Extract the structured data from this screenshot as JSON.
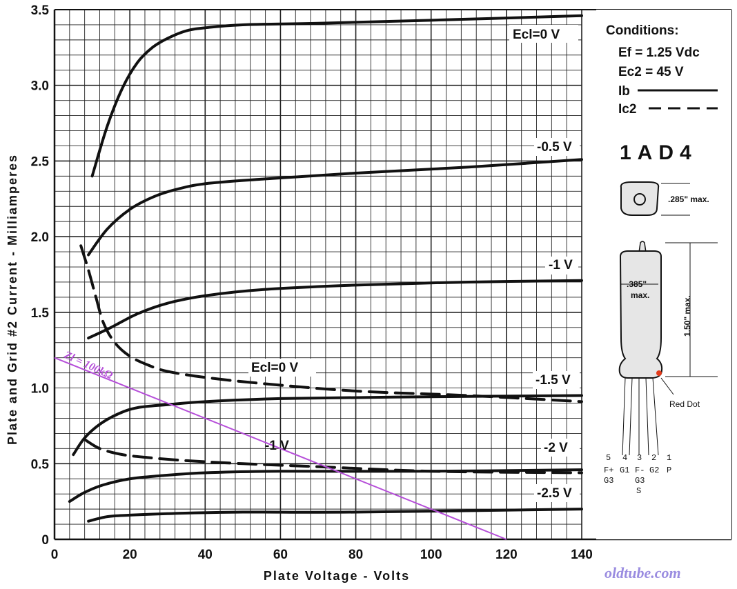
{
  "chart_data": {
    "type": "line",
    "title": "",
    "xlabel": "Plate Voltage - Volts",
    "ylabel": "Plate and Grid #2 Current - Milliamperes",
    "xlim": [
      0,
      140
    ],
    "ylim": [
      0,
      3.5
    ],
    "x_ticks": [
      "0",
      "20",
      "40",
      "60",
      "80",
      "100",
      "120",
      "140"
    ],
    "y_ticks": [
      "0",
      "0.5",
      "1.0",
      "1.5",
      "2.0",
      "2.5",
      "3.0",
      "3.5"
    ],
    "grid": true,
    "series": [
      {
        "name": "Ecl=0 V",
        "label": "Ecl=0 V",
        "kind": "Ib",
        "points": [
          [
            10,
            2.4
          ],
          [
            14,
            2.73
          ],
          [
            18,
            2.98
          ],
          [
            22,
            3.15
          ],
          [
            26,
            3.25
          ],
          [
            30,
            3.31
          ],
          [
            35,
            3.36
          ],
          [
            40,
            3.38
          ],
          [
            50,
            3.4
          ],
          [
            70,
            3.41
          ],
          [
            100,
            3.43
          ],
          [
            140,
            3.46
          ]
        ]
      },
      {
        "name": "-0.5 V",
        "label": "-0.5 V",
        "kind": "Ib",
        "points": [
          [
            9,
            1.88
          ],
          [
            14,
            2.05
          ],
          [
            20,
            2.18
          ],
          [
            26,
            2.26
          ],
          [
            32,
            2.31
          ],
          [
            40,
            2.35
          ],
          [
            55,
            2.38
          ],
          [
            80,
            2.42
          ],
          [
            110,
            2.46
          ],
          [
            140,
            2.51
          ]
        ]
      },
      {
        "name": "-1 V",
        "label": "-1 V",
        "kind": "Ib",
        "points": [
          [
            9,
            1.33
          ],
          [
            15,
            1.4
          ],
          [
            22,
            1.49
          ],
          [
            30,
            1.56
          ],
          [
            40,
            1.61
          ],
          [
            55,
            1.65
          ],
          [
            80,
            1.68
          ],
          [
            110,
            1.7
          ],
          [
            140,
            1.71
          ]
        ]
      },
      {
        "name": "-1.5 V",
        "label": "-1.5 V",
        "kind": "Ib",
        "points": [
          [
            5,
            0.56
          ],
          [
            8,
            0.67
          ],
          [
            12,
            0.76
          ],
          [
            17,
            0.83
          ],
          [
            22,
            0.87
          ],
          [
            30,
            0.89
          ],
          [
            40,
            0.91
          ],
          [
            60,
            0.93
          ],
          [
            90,
            0.94
          ],
          [
            140,
            0.95
          ]
        ]
      },
      {
        "name": "-2 V",
        "label": "-2 V",
        "kind": "Ib",
        "points": [
          [
            4,
            0.25
          ],
          [
            8,
            0.31
          ],
          [
            13,
            0.36
          ],
          [
            20,
            0.4
          ],
          [
            28,
            0.42
          ],
          [
            40,
            0.44
          ],
          [
            60,
            0.45
          ],
          [
            100,
            0.45
          ],
          [
            140,
            0.46
          ]
        ]
      },
      {
        "name": "-2.5 V",
        "label": "-2.5 V",
        "kind": "Ib",
        "points": [
          [
            9,
            0.12
          ],
          [
            14,
            0.15
          ],
          [
            20,
            0.16
          ],
          [
            30,
            0.17
          ],
          [
            50,
            0.18
          ],
          [
            80,
            0.18
          ],
          [
            140,
            0.2
          ]
        ]
      },
      {
        "name": "Ecl=0 V",
        "label": "Ecl=0 V",
        "kind": "Ic2",
        "points": [
          [
            7,
            1.94
          ],
          [
            9,
            1.78
          ],
          [
            11,
            1.6
          ],
          [
            13,
            1.43
          ],
          [
            16,
            1.3
          ],
          [
            20,
            1.21
          ],
          [
            25,
            1.15
          ],
          [
            30,
            1.11
          ],
          [
            40,
            1.07
          ],
          [
            55,
            1.03
          ],
          [
            80,
            0.98
          ],
          [
            110,
            0.95
          ],
          [
            140,
            0.91
          ]
        ]
      },
      {
        "name": "-1 V",
        "label": "-1 V",
        "kind": "Ic2",
        "points": [
          [
            8,
            0.66
          ],
          [
            12,
            0.6
          ],
          [
            18,
            0.56
          ],
          [
            25,
            0.54
          ],
          [
            35,
            0.52
          ],
          [
            50,
            0.5
          ],
          [
            70,
            0.48
          ],
          [
            100,
            0.45
          ],
          [
            140,
            0.44
          ]
        ]
      }
    ],
    "load_line": {
      "label": "Zl = 100kΩ",
      "points": [
        [
          0,
          1.2
        ],
        [
          120,
          0
        ]
      ]
    }
  },
  "panel": {
    "conditions_title": "Conditions:",
    "ef": "Ef = 1.25 Vdc",
    "ec2": "Ec2 = 45 V",
    "ib": "Ib",
    "ic2": "Ic2",
    "tube_name": "1AD4",
    "dim_top": ".285\" max.",
    "dim_width": ".385\"",
    "dim_width_max": "max.",
    "dim_height": "1.50\" max.",
    "red_dot": "Red Dot",
    "pins": [
      {
        "num": "5",
        "name": "F+",
        "name2": "G3"
      },
      {
        "num": "4",
        "name": "G1",
        "name2": ""
      },
      {
        "num": "3",
        "name": "F-",
        "name2": "G3",
        "name3": "S"
      },
      {
        "num": "2",
        "name": "G2",
        "name2": ""
      },
      {
        "num": "1",
        "name": "P",
        "name2": ""
      }
    ]
  },
  "watermark": "oldtube.com",
  "colors": {
    "curve": "#111111",
    "load_line": "#b64fd9",
    "red_dot": "#e33a1a",
    "watermark": "#9a8ce0"
  }
}
